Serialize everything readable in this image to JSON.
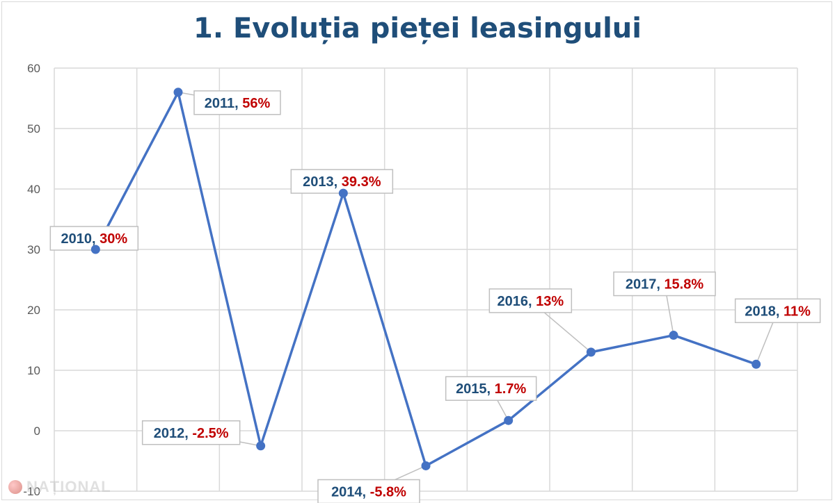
{
  "title": "1. Evoluția pieței leasingului",
  "watermark": "NAȚIONAL",
  "colors": {
    "line": "#4472c4",
    "grid": "#d9d9d9",
    "axis_text": "#595959",
    "label_year": "#1f4e79",
    "label_value": "#c00000",
    "title": "#1f4e79"
  },
  "chart_data": {
    "type": "line",
    "title": "1. Evoluția pieței leasingului",
    "xlabel": "",
    "ylabel": "",
    "ylim": [
      -10,
      60
    ],
    "yticks": [
      60,
      50,
      40,
      30,
      20,
      10,
      0,
      -10
    ],
    "grid": true,
    "categories": [
      "2010",
      "2011",
      "2012",
      "2013",
      "2014",
      "2015",
      "2016",
      "2017",
      "2018"
    ],
    "values": [
      30,
      56,
      -2.5,
      39.3,
      -5.8,
      1.7,
      13,
      15.8,
      11
    ],
    "data_labels": [
      {
        "year": "2010",
        "sep": ", ",
        "value": "30%"
      },
      {
        "year": "2011",
        "sep": ", ",
        "value": "56%"
      },
      {
        "year": "2012",
        "sep": ", ",
        "value": "-2.5%"
      },
      {
        "year": "2013",
        "sep": ", ",
        "value": "39.3%"
      },
      {
        "year": "2014",
        "sep": ", ",
        "value": "-5.8%"
      },
      {
        "year": "2015",
        "sep": ", ",
        "value": "1.7%"
      },
      {
        "year": "2016",
        "sep": ", ",
        "value": "13%"
      },
      {
        "year": "2017",
        "sep": ", ",
        "value": "15.8%"
      },
      {
        "year": "2018",
        "sep": ", ",
        "value": "11%"
      }
    ]
  }
}
